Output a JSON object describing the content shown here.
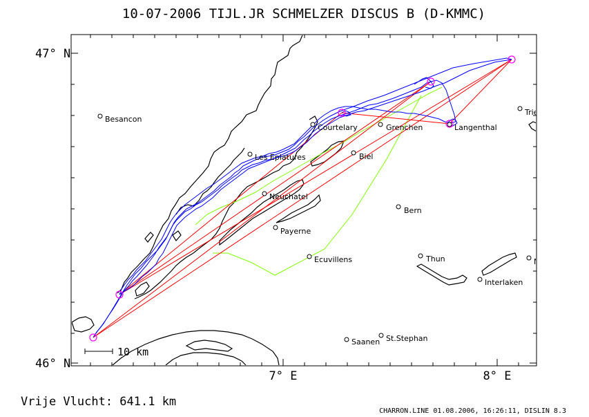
{
  "title": "10-07-2006   TIJL.JR SCHMELZER   DISCUS B (D-KMMC)",
  "axes": {
    "lat_top": "47° N",
    "lat_bottom": "46° N",
    "lon_7": "7° E",
    "lon_8": "8° E"
  },
  "scale_bar": "10 km",
  "distance_label": "Vrije Vlucht:  641.1 km",
  "footer": "CHARRON.LINE 01.08.2006, 16:26:11, DISLIN 8.3",
  "places": [
    {
      "name": "Besancon",
      "lon": 6.13,
      "lat": 46.8
    },
    {
      "name": "Courtelary",
      "lon": 7.13,
      "lat": 46.77
    },
    {
      "name": "Grenchen",
      "lon": 7.46,
      "lat": 46.77
    },
    {
      "name": "Langenthal",
      "lon": 7.78,
      "lat": 46.77
    },
    {
      "name": "Triengen",
      "lon": 8.1,
      "lat": 46.83
    },
    {
      "name": "Les Eplatures",
      "lon": 6.86,
      "lat": 46.67
    },
    {
      "name": "Biel",
      "lon": 7.33,
      "lat": 46.68
    },
    {
      "name": "Neuchatel",
      "lon": 6.93,
      "lat": 46.55
    },
    {
      "name": "Payerne",
      "lon": 6.95,
      "lat": 46.44
    },
    {
      "name": "Bern",
      "lon": 7.52,
      "lat": 46.51
    },
    {
      "name": "Ecuvillens",
      "lon": 7.11,
      "lat": 46.35
    },
    {
      "name": "Thun",
      "lon": 7.63,
      "lat": 46.35
    },
    {
      "name": "Meiringen",
      "lon": 8.15,
      "lat": 46.34
    },
    {
      "name": "Interlaken",
      "lon": 7.91,
      "lat": 46.27
    },
    {
      "name": "Saanen",
      "lon": 7.29,
      "lat": 46.07
    },
    {
      "name": "St.Stephan",
      "lon": 7.45,
      "lat": 46.09
    }
  ],
  "turnpoints": [
    {
      "lon": 6.09,
      "lat": 46.08
    },
    {
      "lon": 6.23,
      "lat": 46.22
    },
    {
      "lon": 7.28,
      "lat": 46.81
    },
    {
      "lon": 7.71,
      "lat": 46.92
    },
    {
      "lon": 7.78,
      "lat": 46.77
    },
    {
      "lon": 8.09,
      "lat": 46.98
    }
  ],
  "colors": {
    "track": "#0000ff",
    "task": "#ff0000",
    "sector": "#80ff00",
    "turnpoint": "#ff00ff",
    "coast": "#000000"
  }
}
